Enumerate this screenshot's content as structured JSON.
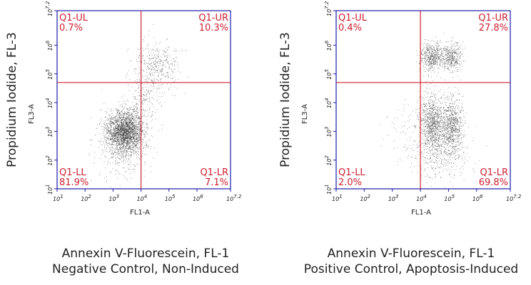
{
  "colors": {
    "frame": "#1a1aa6",
    "gate": "#cc2233",
    "dots": "#222222",
    "text": "#222222"
  },
  "chart_data": [
    {
      "type": "scatter",
      "title": "",
      "outer_ylabel": "Propidium Iodide, FL-3",
      "inner_ylabel": "FL3-A",
      "inner_xlabel": "FL1-A",
      "xscale": "log",
      "yscale": "log",
      "xlim": [
        1,
        7.2
      ],
      "ylim": [
        1,
        7.2
      ],
      "tick_labels": [
        "10^1",
        "10^2",
        "10^3",
        "10^4",
        "10^5",
        "10^6",
        "10^7.2"
      ],
      "gate": {
        "x_log": 4.0,
        "y_log": 4.7
      },
      "quadrants": [
        {
          "name": "Q1-UL",
          "percent": "0.7%",
          "position": "top-left"
        },
        {
          "name": "Q1-UR",
          "percent": "10.3%",
          "position": "top-right"
        },
        {
          "name": "Q1-LL",
          "percent": "81.9%",
          "position": "bottom-left"
        },
        {
          "name": "Q1-LR",
          "percent": "7.1%",
          "position": "bottom-right"
        }
      ],
      "clusters": [
        {
          "cx": 3.4,
          "cy": 3.0,
          "sx": 0.35,
          "sy": 0.38,
          "n": 2400
        },
        {
          "cx": 4.6,
          "cy": 5.3,
          "sx": 0.4,
          "sy": 0.45,
          "n": 400
        },
        {
          "cx": 4.1,
          "cy": 4.2,
          "sx": 0.3,
          "sy": 0.55,
          "n": 180
        },
        {
          "cx": 3.3,
          "cy": 2.2,
          "sx": 0.45,
          "sy": 0.5,
          "n": 250
        }
      ],
      "caption_line1": "Annexin V-Fluorescein, FL-1",
      "caption_line2": "Negative Control, Non-Induced"
    },
    {
      "type": "scatter",
      "title": "",
      "outer_ylabel": "Propidium Iodide, FL-3",
      "inner_ylabel": "FL3-A",
      "inner_xlabel": "FL1-A",
      "xscale": "log",
      "yscale": "log",
      "xlim": [
        1,
        7.2
      ],
      "ylim": [
        1,
        7.2
      ],
      "tick_labels": [
        "10^1",
        "10^2",
        "10^3",
        "10^4",
        "10^5",
        "10^6",
        "10^7.2"
      ],
      "gate": {
        "x_log": 4.0,
        "y_log": 4.7
      },
      "quadrants": [
        {
          "name": "Q1-UL",
          "percent": "0.4%",
          "position": "top-left"
        },
        {
          "name": "Q1-UR",
          "percent": "27.8%",
          "position": "top-right"
        },
        {
          "name": "Q1-LL",
          "percent": "2.0%",
          "position": "bottom-left"
        },
        {
          "name": "Q1-LR",
          "percent": "69.8%",
          "position": "bottom-right"
        }
      ],
      "clusters": [
        {
          "cx": 4.4,
          "cy": 3.3,
          "sx": 0.22,
          "sy": 0.5,
          "n": 900
        },
        {
          "cx": 5.1,
          "cy": 3.2,
          "sx": 0.2,
          "sy": 0.5,
          "n": 800
        },
        {
          "cx": 4.4,
          "cy": 5.6,
          "sx": 0.22,
          "sy": 0.25,
          "n": 500
        },
        {
          "cx": 5.1,
          "cy": 5.6,
          "sx": 0.2,
          "sy": 0.25,
          "n": 400
        },
        {
          "cx": 4.7,
          "cy": 2.2,
          "sx": 0.5,
          "sy": 0.45,
          "n": 350
        },
        {
          "cx": 3.6,
          "cy": 3.0,
          "sx": 0.4,
          "sy": 0.6,
          "n": 80
        }
      ],
      "caption_line1": "Annexin V-Fluorescein, FL-1",
      "caption_line2": "Positive Control, Apoptosis-Induced"
    }
  ]
}
